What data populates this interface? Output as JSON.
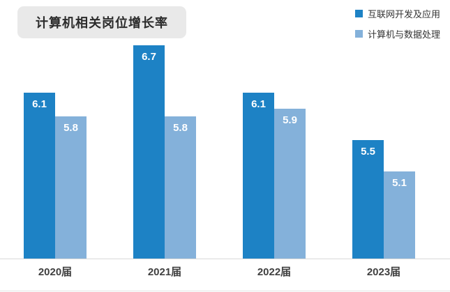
{
  "title": "计算机相关岗位增长率",
  "legend": {
    "items": [
      {
        "label": "互联网开发及应用",
        "color": "#1d82c5"
      },
      {
        "label": "计算机与数据处理",
        "color": "#84b1da"
      }
    ]
  },
  "chart_data": {
    "type": "bar",
    "title": "计算机相关岗位增长率",
    "categories": [
      "2020届",
      "2021届",
      "2022届",
      "2023届"
    ],
    "series": [
      {
        "name": "互联网开发及应用",
        "color": "#1d82c5",
        "values": [
          6.1,
          6.7,
          6.1,
          5.5
        ]
      },
      {
        "name": "计算机与数据处理",
        "color": "#84b1da",
        "values": [
          5.8,
          5.8,
          5.9,
          5.1
        ]
      }
    ],
    "xlabel": "",
    "ylabel": "",
    "ylim": [
      4.0,
      7.0
    ],
    "grid": false,
    "legend_position": "top-right",
    "data_labels": true,
    "data_label_color": "#ffffff"
  }
}
